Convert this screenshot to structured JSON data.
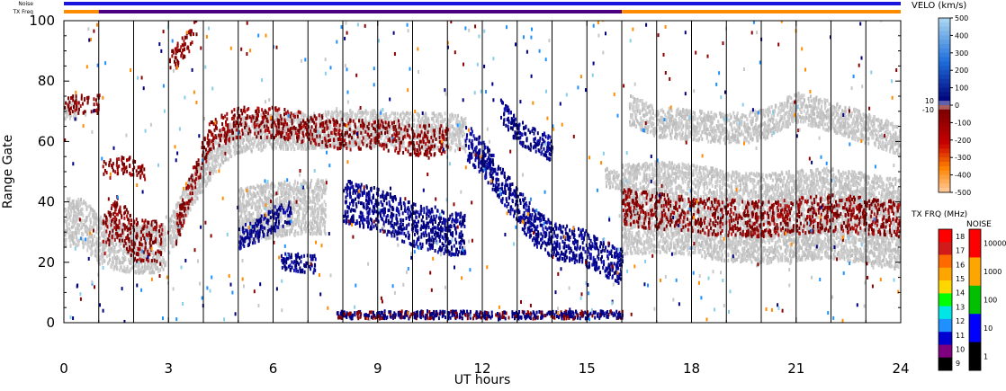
{
  "chart_data": {
    "type": "scatter",
    "xlabel": "UT hours",
    "ylabel": "Range Gate",
    "xlim": [
      0,
      24
    ],
    "ylim": [
      0,
      100
    ],
    "x_ticks": [
      0,
      3,
      6,
      9,
      12,
      15,
      18,
      21,
      24
    ],
    "y_ticks": [
      0,
      20,
      40,
      60,
      80,
      100
    ],
    "scan_boundaries_ut": [
      1,
      2,
      3,
      4,
      5,
      6,
      7,
      8,
      9,
      10,
      11,
      12,
      13,
      14,
      15,
      16,
      17,
      18,
      19,
      20,
      21,
      22,
      23
    ],
    "top_bars": {
      "noise_label": "Noise",
      "txfreq_label": "TX Freq",
      "noise_color": "#1a14e0",
      "txfreq_segments": [
        {
          "from": 0,
          "to": 1,
          "color": "#ff8c00"
        },
        {
          "from": 1,
          "to": 16,
          "color": "#4b0082"
        },
        {
          "from": 16,
          "to": 24,
          "color": "#ff8c00"
        }
      ]
    },
    "velocity_scale": {
      "title": "VELO (km/s)",
      "ticks": [
        "500",
        "400",
        "300",
        "200",
        "100",
        "0",
        "-100",
        "-200",
        "-300",
        "-400",
        "-500"
      ],
      "near_zero_labels": [
        "10",
        "-10"
      ],
      "ground_scatter_color": "#c8c8c8"
    },
    "txfreq_scale": {
      "title": "TX FRQ (MHz)",
      "ticks": [
        "18",
        "17",
        "16",
        "15",
        "14",
        "13",
        "12",
        "11",
        "10",
        "9"
      ],
      "colors": [
        "#ff0000",
        "#d11a1a",
        "#ff6a00",
        "#ffa500",
        "#ffd700",
        "#00ff00",
        "#00e5e5",
        "#1e90ff",
        "#0000d0",
        "#7f007f",
        "#000000"
      ]
    },
    "noise_scale": {
      "title": "NOISE",
      "ticks": [
        "10000",
        "1000",
        "100",
        "10",
        "1"
      ],
      "colors": [
        "#ff0000",
        "#ffa500",
        "#00c000",
        "#0000ff",
        "#000000"
      ]
    },
    "ground_scatter_bands": [
      {
        "points": [
          [
            0.0,
            33
          ],
          [
            0.5,
            33
          ],
          [
            1.0,
            27
          ],
          [
            1.5,
            25
          ],
          [
            2.0,
            24
          ],
          [
            2.5,
            24
          ],
          [
            2.9,
            25
          ]
        ],
        "width": 8
      },
      {
        "points": [
          [
            3.0,
            28
          ],
          [
            3.5,
            40
          ],
          [
            4.0,
            50
          ],
          [
            4.5,
            58
          ],
          [
            5.0,
            62
          ],
          [
            6.0,
            63
          ],
          [
            7.0,
            63
          ],
          [
            8.0,
            64
          ],
          [
            9.0,
            64
          ],
          [
            10.0,
            63
          ],
          [
            11.0,
            63
          ],
          [
            11.5,
            62
          ]
        ],
        "width": 6
      },
      {
        "points": [
          [
            5.0,
            35
          ],
          [
            6.0,
            37
          ],
          [
            7.0,
            38
          ],
          [
            7.5,
            38
          ]
        ],
        "width": 9
      },
      {
        "points": [
          [
            16.0,
            37
          ],
          [
            17.0,
            38
          ],
          [
            18.0,
            37
          ],
          [
            19.0,
            35
          ],
          [
            20.0,
            34
          ],
          [
            21.0,
            35
          ],
          [
            22.0,
            36
          ],
          [
            23.0,
            34
          ],
          [
            24.0,
            32
          ]
        ],
        "width": 15
      },
      {
        "points": [
          [
            16.2,
            70
          ],
          [
            17.0,
            66
          ],
          [
            18.0,
            65
          ],
          [
            19.0,
            64
          ],
          [
            20.0,
            65
          ],
          [
            21.0,
            71
          ],
          [
            22.0,
            68
          ],
          [
            23.0,
            64
          ],
          [
            24.0,
            60
          ]
        ],
        "width": 5
      },
      {
        "points": [
          [
            0.0,
            70
          ],
          [
            0.4,
            70
          ]
        ],
        "width": 3
      },
      {
        "points": [
          [
            15.5,
            48
          ],
          [
            16.0,
            46
          ]
        ],
        "width": 3
      }
    ],
    "positive_velocity_bands": [
      {
        "points": [
          [
            8.0,
            40
          ],
          [
            9.0,
            37
          ],
          [
            10.0,
            32
          ],
          [
            11.0,
            29
          ],
          [
            11.5,
            29
          ]
        ],
        "width": 7
      },
      {
        "points": [
          [
            11.5,
            60
          ],
          [
            12.0,
            54
          ],
          [
            12.5,
            46
          ],
          [
            13.0,
            38
          ],
          [
            13.5,
            31
          ],
          [
            14.0,
            27
          ],
          [
            15.0,
            24
          ],
          [
            16.0,
            18
          ]
        ],
        "width": 6
      },
      {
        "points": [
          [
            12.5,
            70
          ],
          [
            13.0,
            63
          ],
          [
            14.0,
            57
          ]
        ],
        "width": 4
      },
      {
        "points": [
          [
            5.0,
            28
          ],
          [
            5.5,
            30
          ],
          [
            6.0,
            34
          ],
          [
            6.5,
            36
          ]
        ],
        "width": 4
      },
      {
        "points": [
          [
            6.2,
            20
          ],
          [
            7.2,
            19
          ]
        ],
        "width": 3
      }
    ],
    "negative_velocity_bands": [
      {
        "points": [
          [
            1.1,
            28
          ],
          [
            1.5,
            35
          ],
          [
            2.0,
            27
          ],
          [
            2.8,
            26
          ]
        ],
        "width": 7
      },
      {
        "points": [
          [
            1.1,
            50
          ],
          [
            1.8,
            52
          ],
          [
            2.3,
            50
          ]
        ],
        "width": 3
      },
      {
        "points": [
          [
            3.2,
            30
          ],
          [
            3.5,
            40
          ],
          [
            3.8,
            50
          ],
          [
            4.2,
            62
          ],
          [
            5.0,
            66
          ],
          [
            6.0,
            66
          ],
          [
            7.0,
            64
          ],
          [
            8.0,
            62
          ],
          [
            9.0,
            62
          ],
          [
            10.0,
            60
          ],
          [
            11.0,
            60
          ]
        ],
        "width": 5
      },
      {
        "points": [
          [
            3.0,
            85
          ],
          [
            3.5,
            92
          ],
          [
            3.8,
            98
          ]
        ],
        "width": 4
      },
      {
        "points": [
          [
            0.0,
            72
          ],
          [
            1.0,
            72
          ]
        ],
        "width": 3
      },
      {
        "points": [
          [
            16.0,
            38
          ],
          [
            18.0,
            35
          ],
          [
            20.0,
            34
          ],
          [
            22.0,
            36
          ],
          [
            24.0,
            34
          ]
        ],
        "width": 6
      }
    ],
    "low_range_strip": {
      "from": 7.8,
      "to": 16.0,
      "gate": 1
    }
  }
}
